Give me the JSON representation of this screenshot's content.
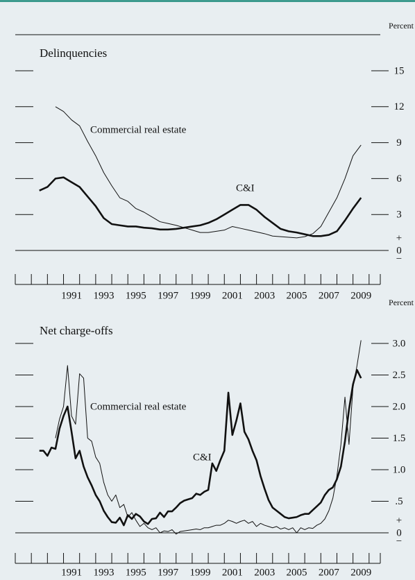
{
  "chart_data": [
    {
      "type": "line",
      "title": "Delinquencies",
      "y_label": "Percent",
      "annotations": [
        "Commercial real estate",
        "C&I"
      ],
      "zero_signs": [
        "+",
        "−"
      ],
      "x": [
        1989.5,
        1990,
        1990.5,
        1991,
        1991.5,
        1992,
        1992.5,
        1993,
        1993.5,
        1994,
        1994.5,
        1995,
        1995.5,
        1996,
        1996.5,
        1997,
        1997.5,
        1998,
        1998.5,
        1999,
        1999.5,
        2000,
        2000.5,
        2001,
        2001.5,
        2002,
        2002.5,
        2003,
        2003.5,
        2004,
        2004.5,
        2005,
        2005.5,
        2006,
        2006.5,
        2007,
        2007.5,
        2008,
        2008.5,
        2009,
        2009.5
      ],
      "series": [
        {
          "name": "Commercial real estate",
          "color": "#111111",
          "line_width": 1,
          "values": [
            null,
            null,
            12.0,
            11.6,
            10.9,
            10.4,
            9.1,
            7.9,
            6.5,
            5.4,
            4.4,
            4.1,
            3.5,
            3.2,
            2.8,
            2.4,
            2.25,
            2.1,
            1.9,
            1.7,
            1.5,
            1.5,
            1.6,
            1.7,
            2.0,
            1.85,
            1.7,
            1.55,
            1.4,
            1.2,
            1.15,
            1.1,
            1.05,
            1.15,
            1.4,
            2.0,
            3.2,
            4.4,
            6.0,
            7.9,
            8.8
          ]
        },
        {
          "name": "C&I",
          "color": "#111111",
          "line_width": 2.6,
          "values": [
            5.0,
            5.3,
            6.0,
            6.1,
            5.7,
            5.3,
            4.5,
            3.7,
            2.7,
            2.2,
            2.1,
            2.0,
            2.0,
            1.9,
            1.85,
            1.75,
            1.75,
            1.8,
            1.9,
            2.0,
            2.1,
            2.3,
            2.6,
            3.0,
            3.4,
            3.8,
            3.8,
            3.4,
            2.8,
            2.3,
            1.8,
            1.6,
            1.5,
            1.35,
            1.2,
            1.2,
            1.3,
            1.6,
            2.5,
            3.5,
            4.4
          ]
        }
      ],
      "xlim": [
        1988,
        2011
      ],
      "xticks": [
        1991,
        1993,
        1995,
        1997,
        1999,
        2001,
        2003,
        2005,
        2007,
        2009
      ],
      "xminor_ticks": [
        1988,
        1989,
        1990,
        1991,
        1992,
        1993,
        1994,
        1995,
        1996,
        1997,
        1998,
        1999,
        2000,
        2001,
        2002,
        2003,
        2004,
        2005,
        2006,
        2007,
        2008,
        2009,
        2010,
        2011
      ],
      "ylim": [
        0,
        15
      ],
      "yticks": [
        0,
        3,
        6,
        9,
        12,
        15
      ]
    },
    {
      "type": "line",
      "title": "Net charge-offs",
      "y_label": "Percent",
      "annotations": [
        "Commercial real estate",
        "C&I"
      ],
      "zero_signs": [
        "+",
        "−"
      ],
      "x": [
        1989.5,
        1989.75,
        1990,
        1990.25,
        1990.5,
        1990.75,
        1991,
        1991.25,
        1991.5,
        1991.75,
        1992,
        1992.25,
        1992.5,
        1992.75,
        1993,
        1993.25,
        1993.5,
        1993.75,
        1994,
        1994.25,
        1994.5,
        1994.75,
        1995,
        1995.25,
        1995.5,
        1995.75,
        1996,
        1996.25,
        1996.5,
        1996.75,
        1997,
        1997.25,
        1997.5,
        1997.75,
        1998,
        1998.25,
        1998.5,
        1998.75,
        1999,
        1999.25,
        1999.5,
        1999.75,
        2000,
        2000.25,
        2000.5,
        2000.75,
        2001,
        2001.25,
        2001.5,
        2001.75,
        2002,
        2002.25,
        2002.5,
        2002.75,
        2003,
        2003.25,
        2003.5,
        2003.75,
        2004,
        2004.25,
        2004.5,
        2004.75,
        2005,
        2005.25,
        2005.5,
        2005.75,
        2006,
        2006.25,
        2006.5,
        2006.75,
        2007,
        2007.25,
        2007.5,
        2007.75,
        2008,
        2008.25,
        2008.5,
        2008.75,
        2009,
        2009.25,
        2009.5
      ],
      "series": [
        {
          "name": "Commercial real estate",
          "color": "#111111",
          "line_width": 1,
          "values": [
            null,
            null,
            null,
            null,
            1.5,
            1.8,
            2.0,
            2.65,
            1.85,
            1.72,
            2.52,
            2.45,
            1.5,
            1.45,
            1.2,
            1.1,
            0.8,
            0.6,
            0.5,
            0.6,
            0.4,
            0.45,
            0.25,
            0.32,
            0.2,
            0.1,
            0.15,
            0.08,
            0.05,
            0.08,
            0,
            0.03,
            0.02,
            0.05,
            -0.02,
            0.02,
            0.03,
            0.04,
            0.05,
            0.06,
            0.05,
            0.08,
            0.08,
            0.1,
            0.12,
            0.12,
            0.15,
            0.2,
            0.18,
            0.15,
            0.18,
            0.2,
            0.15,
            0.18,
            0.1,
            0.15,
            0.12,
            0.1,
            0.08,
            0.1,
            0.06,
            0.08,
            0.05,
            0.08,
            0,
            0.08,
            0.05,
            0.08,
            0.07,
            0.12,
            0.15,
            0.22,
            0.35,
            0.55,
            0.9,
            1.4,
            2.15,
            1.4,
            2.3,
            2.65,
            3.05
          ]
        },
        {
          "name": "C&I",
          "color": "#111111",
          "line_width": 2.6,
          "values": [
            1.3,
            1.3,
            1.22,
            1.35,
            1.33,
            1.65,
            1.85,
            2.0,
            1.6,
            1.18,
            1.3,
            1.05,
            0.88,
            0.75,
            0.6,
            0.5,
            0.35,
            0.25,
            0.17,
            0.16,
            0.24,
            0.12,
            0.28,
            0.22,
            0.3,
            0.26,
            0.18,
            0.14,
            0.22,
            0.23,
            0.32,
            0.25,
            0.34,
            0.34,
            0.4,
            0.47,
            0.51,
            0.53,
            0.55,
            0.62,
            0.6,
            0.65,
            0.68,
            1.1,
            0.98,
            1.15,
            1.3,
            2.22,
            1.55,
            1.78,
            2.05,
            1.6,
            1.48,
            1.3,
            1.15,
            0.9,
            0.7,
            0.52,
            0.4,
            0.35,
            0.3,
            0.25,
            0.23,
            0.24,
            0.25,
            0.28,
            0.3,
            0.3,
            0.36,
            0.42,
            0.48,
            0.6,
            0.68,
            0.72,
            0.85,
            1.05,
            1.45,
            1.95,
            2.35,
            2.58,
            2.45
          ]
        }
      ],
      "xlim": [
        1988,
        2011
      ],
      "xticks": [
        1991,
        1993,
        1995,
        1997,
        1999,
        2001,
        2003,
        2005,
        2007,
        2009
      ],
      "xminor_ticks": [
        1988,
        1989,
        1990,
        1991,
        1992,
        1993,
        1994,
        1995,
        1996,
        1997,
        1998,
        1999,
        2000,
        2001,
        2002,
        2003,
        2004,
        2005,
        2006,
        2007,
        2008,
        2009,
        2010,
        2011
      ],
      "ylim": [
        0,
        3
      ],
      "yticks": [
        0,
        {
          "value": 0.5,
          "label": ".5"
        },
        {
          "value": 1,
          "label": "1.0"
        },
        1.5,
        {
          "value": 2,
          "label": "2.0"
        },
        2.5,
        {
          "value": 3,
          "label": "3.0"
        }
      ]
    }
  ]
}
